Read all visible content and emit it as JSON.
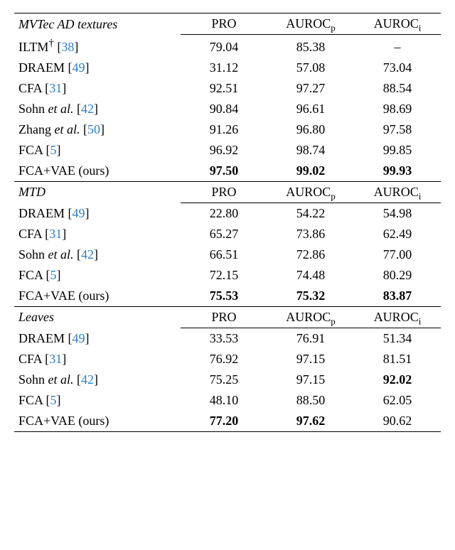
{
  "columns": {
    "pro": "PRO",
    "aurocp_html": "AUROC<span class='sub'>p</span>",
    "auroci_html": "AUROC<span class='sub'>i</span>"
  },
  "sections": [
    {
      "title": "MVTec AD textures",
      "rows": [
        {
          "method_html": "ILTM<sup>†</sup> [<span class='cite'>38</span>]",
          "pro": "79.04",
          "aurocp": "85.38",
          "auroci": "–"
        },
        {
          "method_html": "DRAEM [<span class='cite'>49</span>]",
          "pro": "31.12",
          "aurocp": "57.08",
          "auroci": "73.04"
        },
        {
          "method_html": "CFA [<span class='cite'>31</span>]",
          "pro": "92.51",
          "aurocp": "97.27",
          "auroci": "88.54"
        },
        {
          "method_html": "Sohn <span class='italic'>et al.</span> [<span class='cite'>42</span>]",
          "pro": "90.84",
          "aurocp": "96.61",
          "auroci": "98.69"
        },
        {
          "method_html": "Zhang <span class='italic'>et al.</span> [<span class='cite'>50</span>]",
          "pro": "91.26",
          "aurocp": "96.80",
          "auroci": "97.58"
        },
        {
          "method_html": "FCA [<span class='cite'>5</span>]",
          "pro": "96.92",
          "aurocp": "98.74",
          "auroci": "99.85"
        },
        {
          "method_html": "FCA+VAE (ours)",
          "pro": "97.50",
          "aurocp": "99.02",
          "auroci": "99.93",
          "bold": true
        }
      ]
    },
    {
      "title": "MTD",
      "rows": [
        {
          "method_html": "DRAEM [<span class='cite'>49</span>]",
          "pro": "22.80",
          "aurocp": "54.22",
          "auroci": "54.98"
        },
        {
          "method_html": "CFA [<span class='cite'>31</span>]",
          "pro": "65.27",
          "aurocp": "73.86",
          "auroci": "62.49"
        },
        {
          "method_html": "Sohn <span class='italic'>et al.</span> [<span class='cite'>42</span>]",
          "pro": "66.51",
          "aurocp": "72.86",
          "auroci": "77.00"
        },
        {
          "method_html": "FCA [<span class='cite'>5</span>]",
          "pro": "72.15",
          "aurocp": "74.48",
          "auroci": "80.29"
        },
        {
          "method_html": "FCA+VAE (ours)",
          "pro": "75.53",
          "aurocp": "75.32",
          "auroci": "83.87",
          "bold": true
        }
      ]
    },
    {
      "title": "Leaves",
      "rows": [
        {
          "method_html": "DRAEM [<span class='cite'>49</span>]",
          "pro": "33.53",
          "aurocp": "76.91",
          "auroci": "51.34"
        },
        {
          "method_html": "CFA [<span class='cite'>31</span>]",
          "pro": "76.92",
          "aurocp": "97.15",
          "auroci": "81.51"
        },
        {
          "method_html": "Sohn <span class='italic'>et al.</span> [<span class='cite'>42</span>]",
          "pro": "75.25",
          "aurocp": "97.15",
          "auroci": "92.02",
          "bold_cols": [
            "auroci"
          ]
        },
        {
          "method_html": "FCA [<span class='cite'>5</span>]",
          "pro": "48.10",
          "aurocp": "88.50",
          "auroci": "62.05"
        },
        {
          "method_html": "FCA+VAE (ours)",
          "pro": "77.20",
          "aurocp": "97.62",
          "auroci": "90.62",
          "bold_cols": [
            "pro",
            "aurocp"
          ]
        }
      ]
    }
  ]
}
